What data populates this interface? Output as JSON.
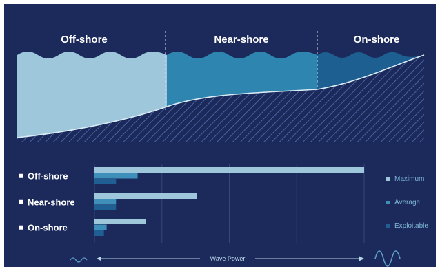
{
  "colors": {
    "background": "#1b2a5a",
    "offshore_zone": "#9ec7dc",
    "nearshore_zone": "#2e86b0",
    "onshore_zone": "#1d5f91",
    "maximum": "#9ec7dc",
    "average": "#3f8fbb",
    "exploitable": "#1f5f93",
    "grid": "#34467a",
    "text": "#ffffff",
    "legend_text": "#7fb6d6"
  },
  "zones": [
    {
      "key": "offshore",
      "label": "Off-shore"
    },
    {
      "key": "nearshore",
      "label": "Near-shore"
    },
    {
      "key": "onshore",
      "label": "On-shore"
    }
  ],
  "chart_data": {
    "type": "bar",
    "orientation": "horizontal",
    "categories": [
      "Off-shore",
      "Near-shore",
      "On-shore"
    ],
    "series": [
      {
        "name": "Maximum",
        "values": [
          100,
          38,
          19
        ]
      },
      {
        "name": "Average",
        "values": [
          16,
          8,
          4.5
        ]
      },
      {
        "name": "Exploitable",
        "values": [
          8,
          8,
          3.5
        ]
      }
    ],
    "xlabel": "Wave Power",
    "xlim": [
      0,
      100
    ],
    "grid": true,
    "legend": "right"
  }
}
